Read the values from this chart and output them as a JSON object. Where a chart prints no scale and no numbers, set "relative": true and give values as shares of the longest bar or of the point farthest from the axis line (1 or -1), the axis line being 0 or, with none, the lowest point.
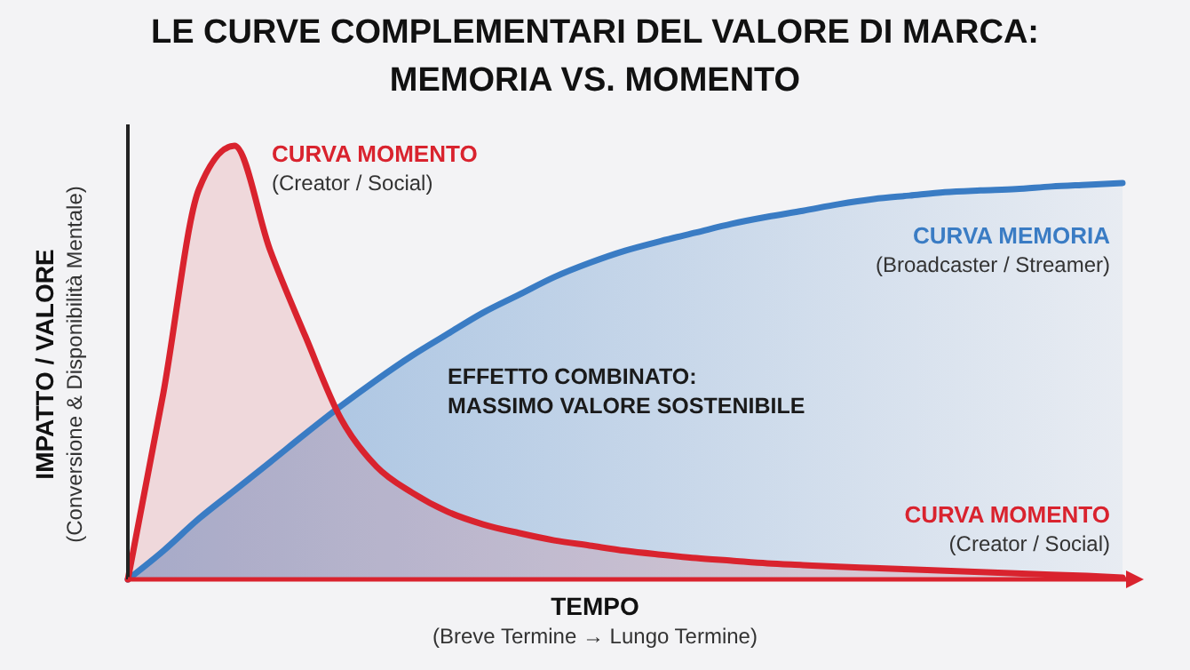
{
  "chart_data": {
    "type": "area",
    "title": "LE CURVE COMPLEMENTARI DEL VALORE DI MARCA:\nMEMORIA VS. MOMENTO",
    "xlabel": "TEMPO",
    "ylabel": "IMPATTO / VALORE",
    "relative": true,
    "categories": [
      null,
      null,
      null,
      null,
      null,
      null,
      null,
      null,
      null,
      null,
      null,
      null,
      null,
      null,
      null,
      null,
      null,
      null,
      null,
      null,
      null,
      null,
      null,
      null,
      null,
      null,
      null,
      null,
      null
    ],
    "series": [
      {
        "name": "CURVA MEMORIA",
        "color": "#3a7cc4",
        "values": [
          0,
          0.066,
          0.14,
          0.205,
          0.27,
          0.336,
          0.4,
          0.46,
          0.516,
          0.566,
          0.615,
          0.656,
          0.697,
          0.73,
          0.758,
          0.78,
          0.8,
          0.82,
          0.836,
          0.85,
          0.865,
          0.877,
          0.885,
          0.893,
          0.897,
          0.9,
          0.906,
          0.91,
          0.914
        ]
      },
      {
        "name": "CURVA MOMENTO",
        "color": "#d9232e",
        "values": [
          0,
          0.43,
          0.9,
          1,
          0.76,
          0.56,
          0.37,
          0.26,
          0.2,
          0.156,
          0.127,
          0.107,
          0.09,
          0.078,
          0.066,
          0.057,
          0.049,
          0.043,
          0.037,
          0.033,
          0.029,
          0.026,
          0.023,
          0.02,
          0.017,
          0.014,
          0.011,
          0.008,
          0.004
        ]
      }
    ],
    "annotations": [
      "(Creator / Social)",
      "(Broadcaster / Streamer)",
      "EFFETTO COMBINATO:\nMASSIMO VALORE SOSTENIBILE",
      "CURVA MOMENTO",
      "(Creator / Social)",
      "(Breve Termine → Lungo Termine)",
      "(Conversione & Disponibilità Mentale)"
    ],
    "grid": false
  }
}
